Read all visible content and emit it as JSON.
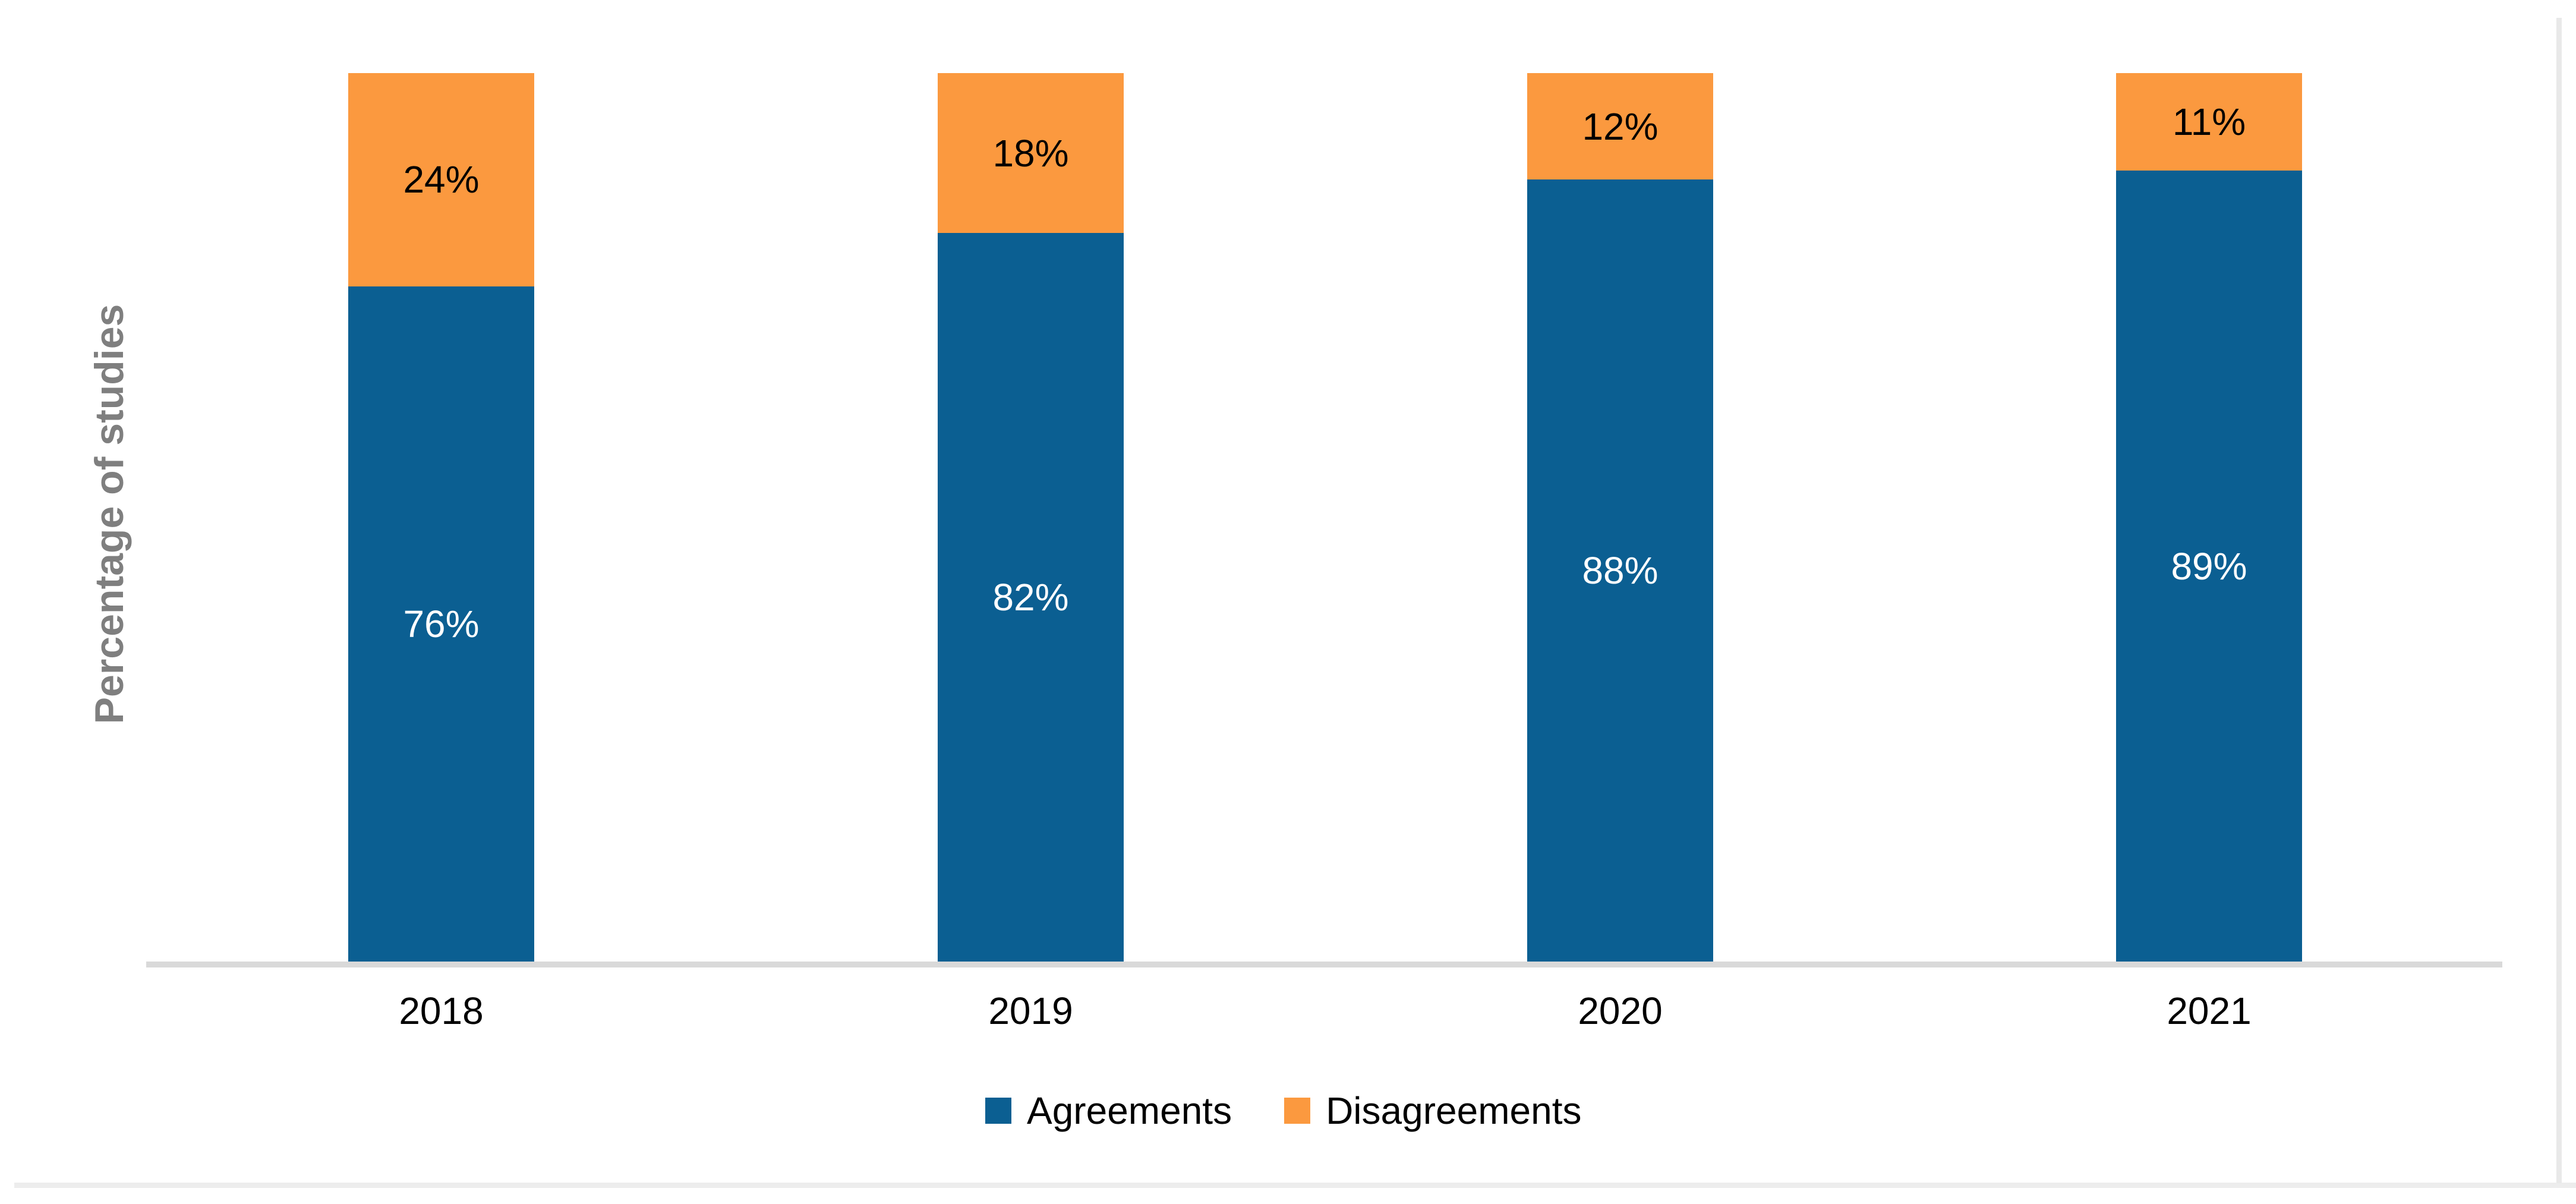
{
  "chart_data": {
    "type": "bar",
    "stacked": true,
    "orientation": "vertical",
    "title": "",
    "xlabel": "",
    "ylabel": "Percentage of studies",
    "ylim": [
      0,
      100
    ],
    "grid": false,
    "y_axis_ticks_visible": false,
    "legend_position": "bottom",
    "categories": [
      "2018",
      "2019",
      "2020",
      "2021"
    ],
    "series": [
      {
        "name": "Agreements",
        "color": "#0b5f92",
        "values": [
          76,
          82,
          88,
          89
        ],
        "labels": [
          "76%",
          "82%",
          "88%",
          "89%"
        ],
        "label_color": "#ffffff"
      },
      {
        "name": "Disagreements",
        "color": "#fb993f",
        "values": [
          24,
          18,
          12,
          11
        ],
        "labels": [
          "24%",
          "18%",
          "12%",
          "11%"
        ],
        "label_color": "#000000"
      }
    ],
    "axis_line_color": "#d9d9d9",
    "axis_title_color": "#7f7f7f"
  }
}
